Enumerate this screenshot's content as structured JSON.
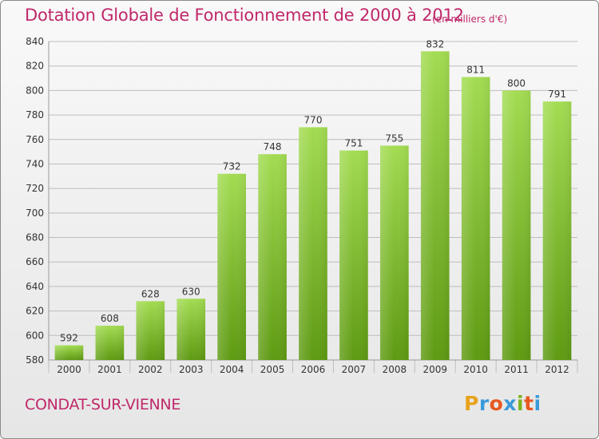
{
  "header": {
    "title": "Dotation Globale de Fonctionnement de 2000 à 2012",
    "unit_note": "(en milliers d'€)"
  },
  "footer": {
    "commune": "CONDAT-SUR-VIENNE",
    "logo_letters": [
      "P",
      "r",
      "o",
      "x",
      "i",
      "t",
      "i"
    ]
  },
  "colors": {
    "title": "#c0286a",
    "bar_light": "#9dd84a",
    "bar_dark": "#5f9a14",
    "grid": "#bdbdbd"
  },
  "chart_data": {
    "type": "bar",
    "title": "Dotation Globale de Fonctionnement de 2000 à 2012",
    "xlabel": "",
    "ylabel": "",
    "categories": [
      "2000",
      "2001",
      "2002",
      "2003",
      "2004",
      "2005",
      "2006",
      "2007",
      "2008",
      "2009",
      "2010",
      "2011",
      "2012"
    ],
    "values": [
      592,
      608,
      628,
      630,
      732,
      748,
      770,
      751,
      755,
      832,
      811,
      800,
      791
    ],
    "ylim": [
      580,
      840
    ],
    "yticks": [
      580,
      600,
      620,
      640,
      660,
      680,
      700,
      720,
      740,
      760,
      780,
      800,
      820,
      840
    ],
    "grid": true,
    "data_labels": true
  }
}
